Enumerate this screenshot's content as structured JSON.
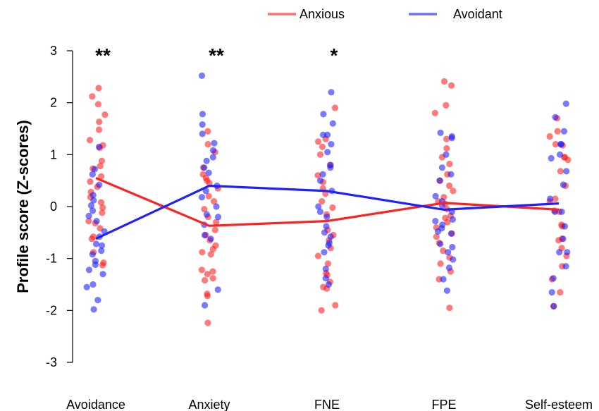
{
  "chart_data": {
    "type": "scatter",
    "ylabel": "Profile score (Z-scores)",
    "xlabel": "",
    "ylim": [
      -3,
      3
    ],
    "yticks": [
      "3",
      "2",
      "1",
      "0",
      "-1",
      "-2",
      "-3"
    ],
    "categories": [
      "Avoidance",
      "Anxiety",
      "FNE",
      "FPE",
      "Self-esteem"
    ],
    "significance": [
      "**",
      "**",
      "*",
      "",
      ""
    ],
    "legend": {
      "position": "top-right",
      "entries": [
        "Anxious",
        "Avoidant"
      ]
    },
    "colors": {
      "Anxious": "#ff2020",
      "Avoidant": "#2020ff",
      "Anxious_line": "#ff7070",
      "Avoidant_line": "#7070ff"
    },
    "series": [
      {
        "name": "Anxious",
        "means": [
          0.55,
          -0.37,
          -0.28,
          0.07,
          -0.06
        ],
        "points": [
          [
            2.28,
            2.12,
            1.97,
            1.77,
            1.63,
            1.48,
            1.28,
            1.18,
            1.13,
            0.88,
            0.78,
            0.73,
            0.58,
            0.48,
            0.38,
            0.28,
            0.18,
            0.08,
            -0.02,
            -0.12,
            -0.28,
            -0.32,
            -0.42,
            -0.58,
            -0.62,
            -0.88,
            -1.08,
            -1.13
          ],
          [
            1.45,
            1.2,
            1.05,
            0.75,
            0.62,
            0.55,
            0.5,
            0.45,
            0.35,
            0.2,
            0.1,
            -0.05,
            -0.2,
            -0.3,
            -0.45,
            -0.55,
            -0.65,
            -0.75,
            -0.82,
            -0.88,
            -0.92,
            -1.22,
            -1.25,
            -1.3,
            -1.38,
            -1.42,
            -1.68,
            -1.72,
            -2.24
          ],
          [
            1.9,
            1.3,
            1.25,
            1.15,
            1.0,
            0.8,
            0.6,
            0.47,
            0.35,
            0.25,
            0.1,
            -0.02,
            -0.15,
            -0.45,
            -0.55,
            -0.65,
            -0.8,
            -0.95,
            -1.1,
            -1.28,
            -1.32,
            -1.45,
            -1.55,
            -1.58,
            -1.9,
            -2.0
          ],
          [
            2.41,
            2.33,
            1.95,
            1.8,
            1.3,
            1.12,
            0.95,
            0.82,
            0.62,
            0.5,
            0.4,
            0.3,
            0.18,
            0.1,
            0.05,
            -0.05,
            -0.18,
            -0.22,
            -0.3,
            -0.4,
            -0.52,
            -0.58,
            -0.7,
            -0.85,
            -0.98,
            -1.1,
            -1.25,
            -1.4,
            -1.95
          ],
          [
            1.7,
            1.45,
            1.35,
            1.2,
            1.18,
            0.95,
            0.95,
            0.9,
            0.68,
            0.4,
            0.15,
            0.1,
            -0.08,
            -0.1,
            -0.35,
            -0.38,
            -0.62,
            -0.65,
            -0.8,
            -0.95,
            -1.15,
            -1.4,
            -1.65,
            -1.92
          ]
        ]
      },
      {
        "name": "Avoidant",
        "means": [
          -0.62,
          0.4,
          0.3,
          -0.06,
          0.06
        ],
        "points": [
          [
            1.15,
            0.72,
            0.62,
            0.42,
            0.22,
            0.12,
            0.02,
            -0.08,
            -0.18,
            -0.28,
            -0.48,
            -0.58,
            -0.72,
            -0.75,
            -0.85,
            -0.92,
            -1.05,
            -1.12,
            -1.22,
            -1.3,
            -1.5,
            -1.55,
            -1.8,
            -1.98
          ],
          [
            2.52,
            1.78,
            1.58,
            1.4,
            1.22,
            1.08,
            0.95,
            0.88,
            0.75,
            0.65,
            0.4,
            0.3,
            0.18,
            0.0,
            -0.15,
            -0.2,
            -0.35,
            -0.55,
            -0.62,
            -1.6,
            -1.9
          ],
          [
            2.2,
            1.78,
            1.6,
            1.38,
            1.38,
            1.2,
            1.05,
            0.8,
            0.75,
            0.62,
            0.5,
            0.3,
            0.0,
            -0.1,
            -0.2,
            -0.38,
            -0.5,
            -0.58,
            -0.7,
            -0.75,
            -0.88,
            -1.2,
            -1.38,
            -1.5
          ],
          [
            1.42,
            1.35,
            1.32,
            1.0,
            0.75,
            0.62,
            0.5,
            0.2,
            0.1,
            0.02,
            -0.1,
            -0.25,
            -0.28,
            -0.35,
            -0.42,
            -0.48,
            -0.52,
            -0.72,
            -0.78,
            -0.88,
            -1.02,
            -1.18,
            -1.4,
            -1.62
          ],
          [
            1.98,
            1.72,
            1.45,
            1.2,
            1.2,
            1.0,
            0.93,
            0.68,
            0.42,
            0.15,
            -0.1,
            -0.1,
            -0.38,
            -0.62,
            -0.88,
            -0.88,
            -1.15,
            -1.38,
            -1.65,
            -1.92
          ]
        ]
      }
    ]
  }
}
